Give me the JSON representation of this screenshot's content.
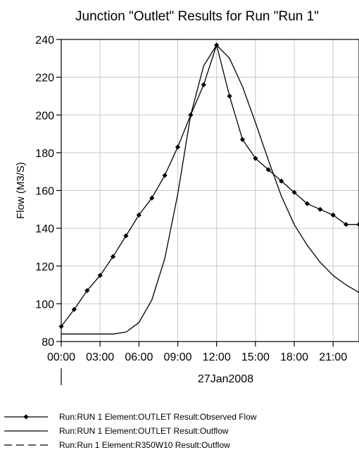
{
  "chart_data": {
    "type": "line",
    "title": "Junction \"Outlet\" Results for Run \"Run 1\"",
    "ylabel": "Flow (M3/S)",
    "date_label": "27Jan2008",
    "xlim": [
      0,
      23
    ],
    "ylim": [
      80,
      240
    ],
    "x_ticks": [
      0,
      3,
      6,
      9,
      12,
      15,
      18,
      21
    ],
    "x_tick_labels": [
      "00:00",
      "03:00",
      "06:00",
      "09:00",
      "12:00",
      "15:00",
      "18:00",
      "21:00"
    ],
    "y_ticks": [
      80,
      100,
      120,
      140,
      160,
      180,
      200,
      220,
      240
    ],
    "y_tick_labels": [
      "80",
      "100",
      "120",
      "140",
      "160",
      "180",
      "200",
      "220",
      "240"
    ],
    "series": [
      {
        "name": "Run:RUN 1 Element:OUTLET Result:Observed Flow",
        "style": "solid-diamond",
        "x": [
          0,
          1,
          2,
          3,
          4,
          5,
          6,
          7,
          8,
          9,
          10,
          11,
          12,
          13,
          14,
          15,
          16,
          17,
          18,
          19,
          20,
          21,
          22,
          23
        ],
        "y": [
          88,
          97,
          107,
          115,
          125,
          136,
          147,
          156,
          168,
          183,
          200,
          216,
          237,
          210,
          187,
          177,
          171,
          165,
          159,
          153,
          150,
          147,
          142,
          142
        ]
      },
      {
        "name": "Run:RUN 1 Element:OUTLET Result:Outflow",
        "style": "solid",
        "x": [
          0,
          1,
          2,
          3,
          4,
          5,
          6,
          7,
          8,
          9,
          10,
          11,
          12,
          13,
          14,
          15,
          16,
          17,
          18,
          19,
          20,
          21,
          22,
          23
        ],
        "y": [
          84,
          84,
          84,
          84,
          84,
          85,
          90,
          102,
          124,
          158,
          200,
          226,
          237,
          230,
          215,
          196,
          176,
          157,
          142,
          131,
          122,
          115,
          110,
          106
        ]
      },
      {
        "name": "Run:Run 1 Element:R350W10 Result:Outflow",
        "style": "dashed",
        "x": [],
        "y": []
      }
    ],
    "legend_position": "bottom"
  }
}
